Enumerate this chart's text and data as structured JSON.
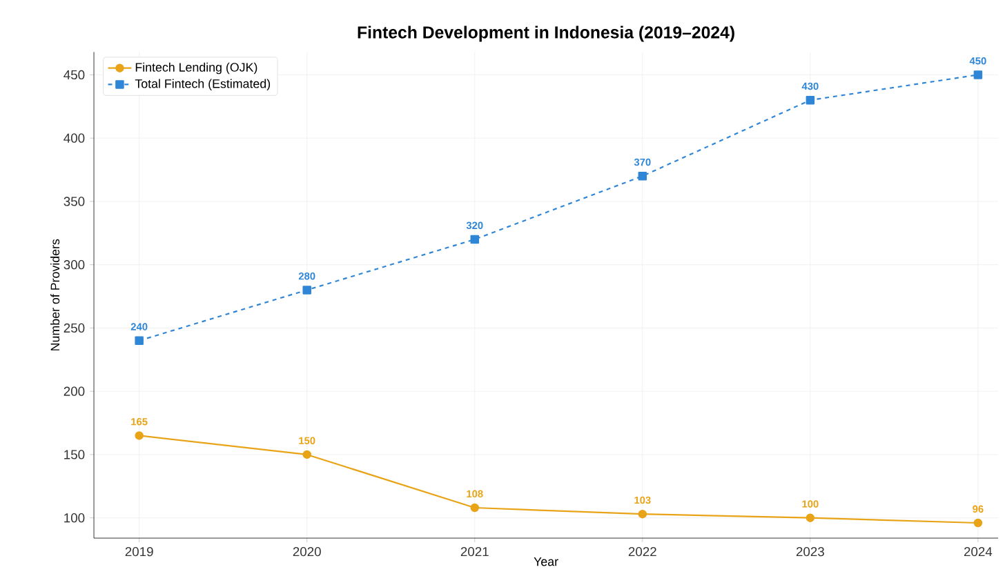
{
  "chart_data": {
    "type": "line",
    "title": "Fintech Development in Indonesia (2019–2024)",
    "xlabel": "Year",
    "ylabel": "Number of Providers",
    "x": [
      2019,
      2020,
      2021,
      2022,
      2023,
      2024
    ],
    "series": [
      {
        "name": "Fintech Lending (OJK)",
        "color": "#e8a317",
        "values": [
          165,
          150,
          108,
          103,
          100,
          96
        ],
        "marker": "circle",
        "line_style": "solid"
      },
      {
        "name": "Total Fintech (Estimated)",
        "color": "#2f86d6",
        "values": [
          240,
          280,
          320,
          370,
          430,
          450
        ],
        "marker": "square",
        "line_style": "dashed"
      }
    ],
    "xlim": [
      2018.73,
      2024.12
    ],
    "ylim": [
      84,
      468
    ],
    "xticks": [
      2019,
      2020,
      2021,
      2022,
      2023,
      2024
    ],
    "yticks": [
      100,
      150,
      200,
      250,
      300,
      350,
      400,
      450
    ],
    "grid": true,
    "legend": "top left",
    "data_labels": true
  }
}
